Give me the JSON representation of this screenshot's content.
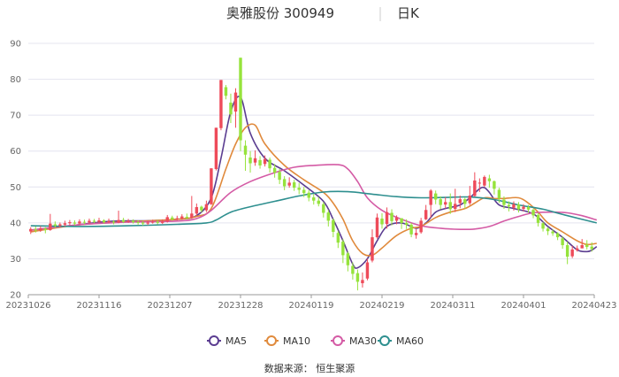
{
  "chart_data": {
    "type": "candlestick",
    "title": "奥雅股份 300949",
    "period": "日K",
    "source": "数据来源： 恒生聚源",
    "ylim": [
      20,
      90
    ],
    "yticks": [
      20,
      30,
      40,
      50,
      60,
      70,
      80,
      90
    ],
    "x_tick_labels": [
      "20231026",
      "20231116",
      "20231207",
      "20231228",
      "20240119",
      "20240219",
      "20240311",
      "20240401",
      "20240423"
    ],
    "grid": true,
    "legend_position": "bottom",
    "up_color": "#ee4b5a",
    "down_color": "#96e33c",
    "candles": [
      [
        37.6,
        38.3,
        36.9,
        38.8
      ],
      [
        38.2,
        37.9,
        37.3,
        39.0
      ],
      [
        37.9,
        38.5,
        37.5,
        39.1
      ],
      [
        38.4,
        38.0,
        37.1,
        38.8
      ],
      [
        38.0,
        39.8,
        37.8,
        42.5
      ],
      [
        39.6,
        39.2,
        38.6,
        40.4
      ],
      [
        39.2,
        39.6,
        38.7,
        40.1
      ],
      [
        39.5,
        39.9,
        39.0,
        40.6
      ],
      [
        39.9,
        40.2,
        39.4,
        40.8
      ],
      [
        40.1,
        39.8,
        39.3,
        40.7
      ],
      [
        39.8,
        40.4,
        39.5,
        41.0
      ],
      [
        40.3,
        40.1,
        39.6,
        40.9
      ],
      [
        40.1,
        40.6,
        39.8,
        41.2
      ],
      [
        40.6,
        40.3,
        39.9,
        41.1
      ],
      [
        40.3,
        40.7,
        40.0,
        41.4
      ],
      [
        40.7,
        40.2,
        39.8,
        41.0
      ],
      [
        40.2,
        40.5,
        39.9,
        41.2
      ],
      [
        40.4,
        40.1,
        39.6,
        40.8
      ],
      [
        40.1,
        40.8,
        39.9,
        43.4
      ],
      [
        40.8,
        40.3,
        39.9,
        41.4
      ],
      [
        40.3,
        40.6,
        40.0,
        41.1
      ],
      [
        40.6,
        40.2,
        39.8,
        41.0
      ],
      [
        40.2,
        40.1,
        39.5,
        40.7
      ],
      [
        40.1,
        39.8,
        39.3,
        40.5
      ],
      [
        39.8,
        40.1,
        39.4,
        40.6
      ],
      [
        40.1,
        40.3,
        39.8,
        40.9
      ],
      [
        40.3,
        40.0,
        39.6,
        40.8
      ],
      [
        40.0,
        40.4,
        39.7,
        41.0
      ],
      [
        40.4,
        41.6,
        40.1,
        42.2
      ],
      [
        41.5,
        41.0,
        40.6,
        42.0
      ],
      [
        41.0,
        41.3,
        40.7,
        42.0
      ],
      [
        41.2,
        41.8,
        40.9,
        42.4
      ],
      [
        41.7,
        41.4,
        41.0,
        42.6
      ],
      [
        41.4,
        42.6,
        41.1,
        47.5
      ],
      [
        42.6,
        44.4,
        41.9,
        45.4
      ],
      [
        44.5,
        43.5,
        42.9,
        44.8
      ],
      [
        43.5,
        45.2,
        43.0,
        46.2
      ],
      [
        45.2,
        55.2,
        45.0,
        55.2
      ],
      [
        55.0,
        66.5,
        54.6,
        66.5
      ],
      [
        66.4,
        79.8,
        65.8,
        79.8
      ],
      [
        77.8,
        75.4,
        74.4,
        78.4
      ],
      [
        73.5,
        70.2,
        67.8,
        76.0
      ],
      [
        71.0,
        76.3,
        66.5,
        77.5
      ],
      [
        86.0,
        63.0,
        60.0,
        86.0
      ],
      [
        61.5,
        59.0,
        54.5,
        63.0
      ],
      [
        58.2,
        56.6,
        54.0,
        60.0
      ],
      [
        56.8,
        58.0,
        55.9,
        60.2
      ],
      [
        57.5,
        56.0,
        55.1,
        58.6
      ],
      [
        56.4,
        57.8,
        55.7,
        58.8
      ],
      [
        57.6,
        55.2,
        54.0,
        58.2
      ],
      [
        55.3,
        54.0,
        52.6,
        56.4
      ],
      [
        54.2,
        52.0,
        50.8,
        55.0
      ],
      [
        52.2,
        50.2,
        49.1,
        53.0
      ],
      [
        50.4,
        51.2,
        49.8,
        52.7
      ],
      [
        51.3,
        49.8,
        48.9,
        52.0
      ],
      [
        49.8,
        49.2,
        48.0,
        51.1
      ],
      [
        49.2,
        48.3,
        47.2,
        50.0
      ],
      [
        48.4,
        47.0,
        46.0,
        49.1
      ],
      [
        47.1,
        46.2,
        45.1,
        48.0
      ],
      [
        46.2,
        45.3,
        44.6,
        47.2
      ],
      [
        45.2,
        42.8,
        41.5,
        45.8
      ],
      [
        42.9,
        40.6,
        39.0,
        43.6
      ],
      [
        40.8,
        37.5,
        36.0,
        41.2
      ],
      [
        37.2,
        34.5,
        33.0,
        37.8
      ],
      [
        34.8,
        31.0,
        28.8,
        35.5
      ],
      [
        31.5,
        28.2,
        26.5,
        32.0
      ],
      [
        28.0,
        25.8,
        24.2,
        29.0
      ],
      [
        26.0,
        23.6,
        21.2,
        27.0
      ],
      [
        23.2,
        24.1,
        22.0,
        26.2
      ],
      [
        24.5,
        29.0,
        24.0,
        30.0
      ],
      [
        29.5,
        36.0,
        29.0,
        38.2
      ],
      [
        36.0,
        41.5,
        35.6,
        42.6
      ],
      [
        41.2,
        39.6,
        38.4,
        42.7
      ],
      [
        39.7,
        43.0,
        38.4,
        44.3
      ],
      [
        42.8,
        40.5,
        39.3,
        43.8
      ],
      [
        40.6,
        41.5,
        39.6,
        42.1
      ],
      [
        41.3,
        40.0,
        38.3,
        41.3
      ],
      [
        40.0,
        39.5,
        38.3,
        41.0
      ],
      [
        39.5,
        36.8,
        36.0,
        40.0
      ],
      [
        36.6,
        37.2,
        35.6,
        38.3
      ],
      [
        37.4,
        40.6,
        37.0,
        41.4
      ],
      [
        41.0,
        43.6,
        40.8,
        45.0
      ],
      [
        45.0,
        49.0,
        41.5,
        49.4
      ],
      [
        48.2,
        46.5,
        45.2,
        49.0
      ],
      [
        46.6,
        45.0,
        43.8,
        47.4
      ],
      [
        45.1,
        45.8,
        44.0,
        47.2
      ],
      [
        45.8,
        43.8,
        42.5,
        48.2
      ],
      [
        43.9,
        45.3,
        43.0,
        49.5
      ],
      [
        45.5,
        46.6,
        44.1,
        47.6
      ],
      [
        46.6,
        45.3,
        44.0,
        47.0
      ],
      [
        45.5,
        47.6,
        45.0,
        50.3
      ],
      [
        47.5,
        51.8,
        47.3,
        54.1
      ],
      [
        51.2,
        51.2,
        48.6,
        52.4
      ],
      [
        50.4,
        52.8,
        50.0,
        53.2
      ],
      [
        52.4,
        51.6,
        49.8,
        53.4
      ],
      [
        51.6,
        49.5,
        47.9,
        51.8
      ],
      [
        49.2,
        46.8,
        45.6,
        49.8
      ],
      [
        46.5,
        45.0,
        43.9,
        47.4
      ],
      [
        45.0,
        44.6,
        43.2,
        46.0
      ],
      [
        44.2,
        45.2,
        43.4,
        46.0
      ],
      [
        45.1,
        43.8,
        42.9,
        45.8
      ],
      [
        43.9,
        44.5,
        43.2,
        45.2
      ],
      [
        44.4,
        43.7,
        42.8,
        45.0
      ],
      [
        43.6,
        42.1,
        41.3,
        44.0
      ],
      [
        42.2,
        40.0,
        39.0,
        42.8
      ],
      [
        39.9,
        38.4,
        37.6,
        40.3
      ],
      [
        38.4,
        37.7,
        36.6,
        38.8
      ],
      [
        37.6,
        37.1,
        36.4,
        38.2
      ],
      [
        37.1,
        36.0,
        35.2,
        37.4
      ],
      [
        35.7,
        33.8,
        32.8,
        36.3
      ],
      [
        33.8,
        30.6,
        28.5,
        34.8
      ],
      [
        30.7,
        32.6,
        30.2,
        33.6
      ],
      [
        32.4,
        32.9,
        32.0,
        33.7
      ],
      [
        32.9,
        33.8,
        33.1,
        35.5
      ],
      [
        33.9,
        33.3,
        32.6,
        35.2
      ],
      [
        33.4,
        32.7,
        32.0,
        34.6
      ]
    ],
    "series": [
      {
        "name": "MA5",
        "color": "#5b3d91",
        "values": [
          [
            0,
            38.0
          ],
          [
            8,
            39.2
          ],
          [
            16,
            40.4
          ],
          [
            24,
            40.6
          ],
          [
            30,
            41.0
          ],
          [
            34,
            42.0
          ],
          [
            37,
            47.0
          ],
          [
            39,
            58.0
          ],
          [
            41,
            71.0
          ],
          [
            43,
            75.0
          ],
          [
            45,
            65.0
          ],
          [
            48,
            58.0
          ],
          [
            52,
            54.5
          ],
          [
            56,
            50.5
          ],
          [
            60,
            46.0
          ],
          [
            62,
            41.0
          ],
          [
            64,
            35.0
          ],
          [
            66,
            28.5
          ],
          [
            67,
            27.5
          ],
          [
            69,
            30.0
          ],
          [
            71,
            35.0
          ],
          [
            73,
            39.0
          ],
          [
            76,
            40.0
          ],
          [
            79,
            38.5
          ],
          [
            81,
            40.0
          ],
          [
            83,
            43.0
          ],
          [
            85,
            44.0
          ],
          [
            88,
            45.0
          ],
          [
            90,
            47.0
          ],
          [
            92,
            49.5
          ],
          [
            93,
            49.8
          ],
          [
            94,
            48.5
          ],
          [
            96,
            45.0
          ],
          [
            99,
            44.0
          ],
          [
            103,
            42.5
          ],
          [
            106,
            39.0
          ],
          [
            109,
            36.0
          ],
          [
            112,
            32.5
          ],
          [
            114,
            32.0
          ],
          [
            115,
            32.4
          ],
          [
            116,
            33.4
          ]
        ]
      },
      {
        "name": "MA10",
        "color": "#e08a3c",
        "values": [
          [
            0,
            37.5
          ],
          [
            10,
            39.5
          ],
          [
            20,
            40.3
          ],
          [
            30,
            41.0
          ],
          [
            34,
            41.8
          ],
          [
            37,
            44.0
          ],
          [
            40,
            55.0
          ],
          [
            42,
            62.0
          ],
          [
            44,
            66.5
          ],
          [
            46,
            67.2
          ],
          [
            48,
            62.0
          ],
          [
            52,
            56.0
          ],
          [
            56,
            52.0
          ],
          [
            60,
            48.5
          ],
          [
            62,
            45.5
          ],
          [
            64,
            41.0
          ],
          [
            66,
            35.0
          ],
          [
            68,
            31.5
          ],
          [
            70,
            31.0
          ],
          [
            72,
            33.0
          ],
          [
            75,
            36.5
          ],
          [
            78,
            38.5
          ],
          [
            80,
            39.0
          ],
          [
            83,
            41.5
          ],
          [
            86,
            43.0
          ],
          [
            89,
            44.0
          ],
          [
            91,
            45.5
          ],
          [
            93,
            47.0
          ],
          [
            95,
            46.8
          ],
          [
            97,
            46.8
          ],
          [
            100,
            47.0
          ],
          [
            102,
            45.5
          ],
          [
            104,
            43.0
          ],
          [
            106,
            40.0
          ],
          [
            109,
            37.5
          ],
          [
            112,
            35.0
          ],
          [
            114,
            34.0
          ],
          [
            116,
            34.3
          ]
        ]
      },
      {
        "name": "MA30",
        "color": "#d45ba5",
        "values": [
          [
            0,
            38.0
          ],
          [
            10,
            39.5
          ],
          [
            20,
            40.2
          ],
          [
            30,
            40.5
          ],
          [
            34,
            41.2
          ],
          [
            37,
            43.5
          ],
          [
            41,
            48.5
          ],
          [
            45,
            51.5
          ],
          [
            50,
            54.0
          ],
          [
            54,
            55.5
          ],
          [
            58,
            56.0
          ],
          [
            63,
            56.2
          ],
          [
            65,
            55.0
          ],
          [
            67,
            51.5
          ],
          [
            69,
            47.0
          ],
          [
            72,
            43.5
          ],
          [
            76,
            41.0
          ],
          [
            80,
            39.2
          ],
          [
            84,
            38.5
          ],
          [
            88,
            38.2
          ],
          [
            91,
            38.3
          ],
          [
            94,
            39.0
          ],
          [
            97,
            40.5
          ],
          [
            100,
            41.8
          ],
          [
            103,
            42.8
          ],
          [
            107,
            43.0
          ],
          [
            110,
            42.8
          ],
          [
            113,
            42.0
          ],
          [
            116,
            40.8
          ]
        ]
      },
      {
        "name": "MA60",
        "color": "#2e8f8f",
        "values": [
          [
            0,
            39.2
          ],
          [
            10,
            39.0
          ],
          [
            20,
            39.2
          ],
          [
            30,
            39.6
          ],
          [
            36,
            40.0
          ],
          [
            38,
            40.8
          ],
          [
            41,
            43.0
          ],
          [
            45,
            44.5
          ],
          [
            50,
            46.0
          ],
          [
            55,
            47.5
          ],
          [
            60,
            48.6
          ],
          [
            65,
            48.7
          ],
          [
            70,
            48.0
          ],
          [
            75,
            47.3
          ],
          [
            80,
            47.0
          ],
          [
            85,
            47.1
          ],
          [
            90,
            47.2
          ],
          [
            95,
            46.5
          ],
          [
            100,
            45.0
          ],
          [
            105,
            43.8
          ],
          [
            110,
            42.0
          ],
          [
            116,
            40.0
          ]
        ]
      }
    ]
  }
}
